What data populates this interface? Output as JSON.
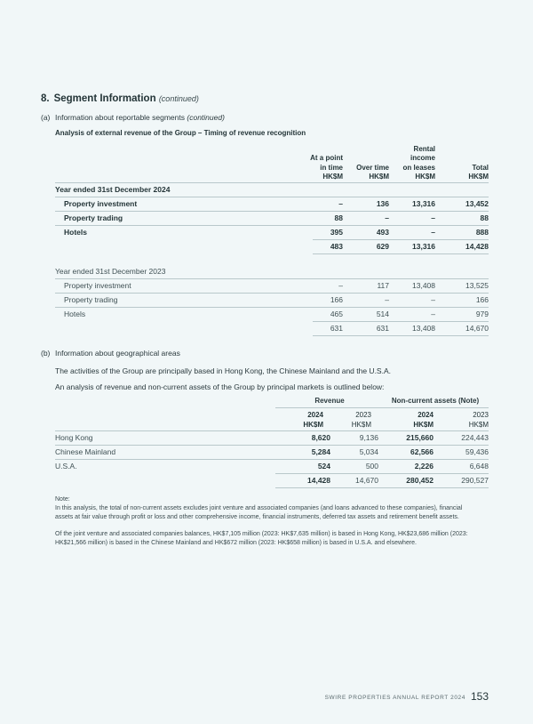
{
  "section": {
    "number": "8.",
    "title": "Segment Information",
    "continued": "(continued)"
  },
  "part_a": {
    "label": "(a)",
    "text": "Information about reportable segments",
    "continued": "(continued)"
  },
  "table1": {
    "title": "Analysis of external revenue of the Group – Timing of revenue recognition",
    "columns": [
      {
        "lines": [
          "At a point",
          "in time",
          "HK$M"
        ]
      },
      {
        "lines": [
          "Over time",
          "HK$M"
        ]
      },
      {
        "lines": [
          "Rental",
          "income",
          "on leases",
          "HK$M"
        ]
      },
      {
        "lines": [
          "Total",
          "HK$M"
        ]
      }
    ],
    "year2024": {
      "heading": "Year ended 31st December 2024",
      "rows": [
        {
          "label": "Property investment",
          "values": [
            "–",
            "136",
            "13,316",
            "13,452"
          ]
        },
        {
          "label": "Property trading",
          "values": [
            "88",
            "–",
            "–",
            "88"
          ]
        },
        {
          "label": "Hotels",
          "values": [
            "395",
            "493",
            "–",
            "888"
          ]
        }
      ],
      "total": [
        "483",
        "629",
        "13,316",
        "14,428"
      ]
    },
    "year2023": {
      "heading": "Year ended 31st December 2023",
      "rows": [
        {
          "label": "Property investment",
          "values": [
            "–",
            "117",
            "13,408",
            "13,525"
          ]
        },
        {
          "label": "Property trading",
          "values": [
            "166",
            "–",
            "–",
            "166"
          ]
        },
        {
          "label": "Hotels",
          "values": [
            "465",
            "514",
            "–",
            "979"
          ]
        }
      ],
      "total": [
        "631",
        "631",
        "13,408",
        "14,670"
      ]
    }
  },
  "part_b": {
    "label": "(b)",
    "text": "Information about geographical areas",
    "para1": "The activities of the Group are principally based in Hong Kong, the Chinese Mainland and the U.S.A.",
    "para2": "An analysis of revenue and non-current assets of the Group by principal markets is outlined below:"
  },
  "table2": {
    "group_revenue": "Revenue",
    "group_assets": "Non-current assets (Note)",
    "years": [
      "2024",
      "2023",
      "2024",
      "2023"
    ],
    "units": [
      "HK$M",
      "HK$M",
      "HK$M",
      "HK$M"
    ],
    "rows": [
      {
        "label": "Hong Kong",
        "values": [
          "8,620",
          "9,136",
          "215,660",
          "224,443"
        ]
      },
      {
        "label": "Chinese Mainland",
        "values": [
          "5,284",
          "5,034",
          "62,566",
          "59,436"
        ]
      },
      {
        "label": "U.S.A.",
        "values": [
          "524",
          "500",
          "2,226",
          "6,648"
        ]
      }
    ],
    "total": [
      "14,428",
      "14,670",
      "280,452",
      "290,527"
    ]
  },
  "note": {
    "heading": "Note:",
    "p1": "In this analysis, the total of non-current assets excludes joint venture and associated companies (and loans advanced to these companies), financial assets at fair value through profit or loss and other comprehensive income, financial instruments, deferred tax assets and retirement benefit assets.",
    "p2": "Of the joint venture and associated companies balances, HK$7,105 million (2023: HK$7,635 million) is based in Hong Kong, HK$23,686 million (2023: HK$21,566 million) is based in the Chinese Mainland and HK$672 million (2023: HK$658 million) is based in U.S.A. and elsewhere."
  },
  "footer": {
    "text": "SWIRE PROPERTIES ANNUAL REPORT 2024",
    "page": "153"
  }
}
